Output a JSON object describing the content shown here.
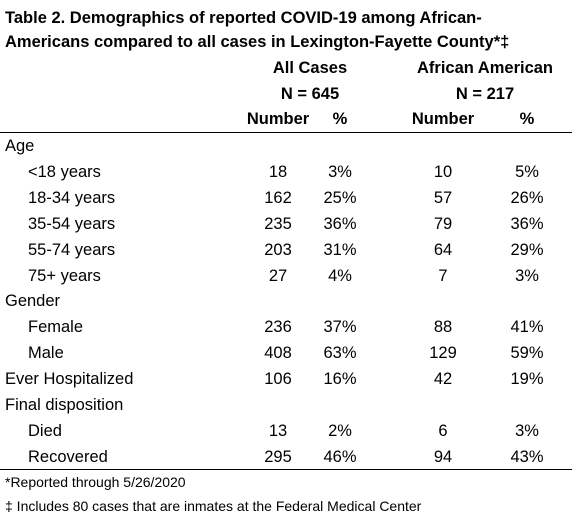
{
  "title": {
    "line1": "Table 2. Demographics of reported COVID-19 among African-",
    "line2": "Americans compared to all cases in Lexington-Fayette County*‡"
  },
  "headers": {
    "all_cases": "All Cases",
    "all_cases_n": "N = 645",
    "african_american": "African American",
    "african_american_n": "N = 217",
    "number": "Number",
    "percent": "%"
  },
  "rows": [
    {
      "label": "Age",
      "indent": false,
      "all_number": "",
      "all_percent": "",
      "aa_number": "",
      "aa_percent": ""
    },
    {
      "label": "<18 years",
      "indent": true,
      "all_number": "18",
      "all_percent": "3%",
      "aa_number": "10",
      "aa_percent": "5%"
    },
    {
      "label": "18-34 years",
      "indent": true,
      "all_number": "162",
      "all_percent": "25%",
      "aa_number": "57",
      "aa_percent": "26%"
    },
    {
      "label": "35-54 years",
      "indent": true,
      "all_number": "235",
      "all_percent": "36%",
      "aa_number": "79",
      "aa_percent": "36%"
    },
    {
      "label": "55-74 years",
      "indent": true,
      "all_number": "203",
      "all_percent": "31%",
      "aa_number": "64",
      "aa_percent": "29%"
    },
    {
      "label": "75+ years",
      "indent": true,
      "all_number": "27",
      "all_percent": "4%",
      "aa_number": "7",
      "aa_percent": "3%"
    },
    {
      "label": "Gender",
      "indent": false,
      "all_number": "",
      "all_percent": "",
      "aa_number": "",
      "aa_percent": ""
    },
    {
      "label": "Female",
      "indent": true,
      "all_number": "236",
      "all_percent": "37%",
      "aa_number": "88",
      "aa_percent": "41%"
    },
    {
      "label": "Male",
      "indent": true,
      "all_number": "408",
      "all_percent": "63%",
      "aa_number": "129",
      "aa_percent": "59%"
    },
    {
      "label": "Ever Hospitalized",
      "indent": false,
      "all_number": "106",
      "all_percent": "16%",
      "aa_number": "42",
      "aa_percent": "19%"
    },
    {
      "label": "Final disposition",
      "indent": false,
      "all_number": "",
      "all_percent": "",
      "aa_number": "",
      "aa_percent": ""
    },
    {
      "label": "Died",
      "indent": true,
      "all_number": "13",
      "all_percent": "2%",
      "aa_number": "6",
      "aa_percent": "3%"
    },
    {
      "label": "Recovered",
      "indent": true,
      "all_number": "295",
      "all_percent": "46%",
      "aa_number": "94",
      "aa_percent": "43%"
    }
  ],
  "footnotes": {
    "reported": "*Reported through 5/26/2020",
    "inmates": "‡ Includes 80 cases that are inmates at the Federal Medical Center"
  }
}
